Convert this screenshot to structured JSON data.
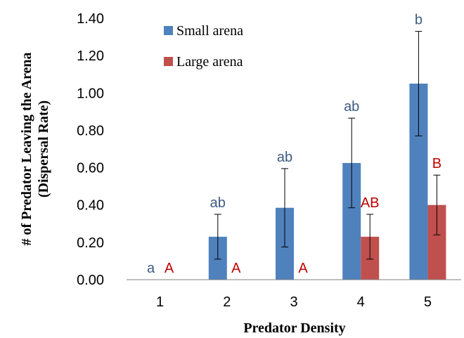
{
  "chart_data": {
    "type": "bar",
    "xlabel": "Predator Density",
    "ylabel_line1": "# of Predator Leaving the Arena",
    "ylabel_line2": "(Dispersal Rate)",
    "categories": [
      "1",
      "2",
      "3",
      "4",
      "5"
    ],
    "ylim": [
      0,
      1.4
    ],
    "yticks": [
      "0.00",
      "0.20",
      "0.40",
      "0.60",
      "0.80",
      "1.00",
      "1.20",
      "1.40"
    ],
    "grid": false,
    "legend_position": "top-left",
    "series": [
      {
        "name": "Small arena",
        "color": "#4f81bd",
        "label_color": "#3d5a80",
        "values": [
          0,
          0.23,
          0.385,
          0.625,
          1.05
        ],
        "errors": [
          0,
          0.12,
          0.21,
          0.24,
          0.28
        ],
        "labels": [
          "a",
          "ab",
          "ab",
          "ab",
          "b"
        ]
      },
      {
        "name": "Large arena",
        "color": "#c0504d",
        "label_color": "#c00000",
        "values": [
          0,
          0,
          0,
          0.23,
          0.4
        ],
        "errors": [
          0,
          0,
          0,
          0.12,
          0.16
        ],
        "labels": [
          "A",
          "A",
          "A",
          "AB",
          "B"
        ]
      }
    ]
  }
}
